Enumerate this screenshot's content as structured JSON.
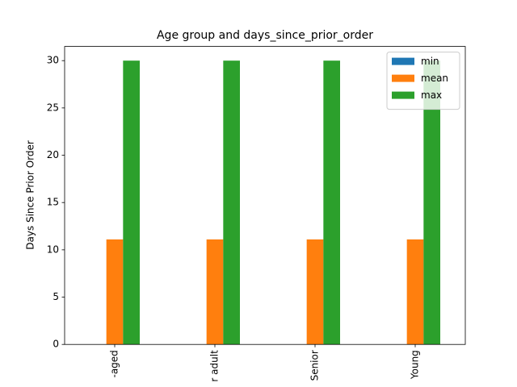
{
  "chart_data": {
    "type": "bar",
    "title": "Age group and days_since_prior_order",
    "y_label": "Days Since Prior Order",
    "categories": [
      "-aged",
      "r adult",
      "Senior",
      "Young"
    ],
    "series": [
      {
        "name": "min",
        "color": "#1f77b4",
        "values": [
          0,
          0,
          0,
          0
        ]
      },
      {
        "name": "mean",
        "color": "#ff7f0e",
        "values": [
          11.1,
          11.1,
          11.1,
          11.1
        ]
      },
      {
        "name": "max",
        "color": "#2ca02c",
        "values": [
          30,
          30,
          30,
          30
        ]
      }
    ],
    "ylim": [
      0,
      31.5
    ],
    "yticks": [
      0,
      5,
      10,
      15,
      20,
      25,
      30
    ],
    "legend": "upper right"
  }
}
